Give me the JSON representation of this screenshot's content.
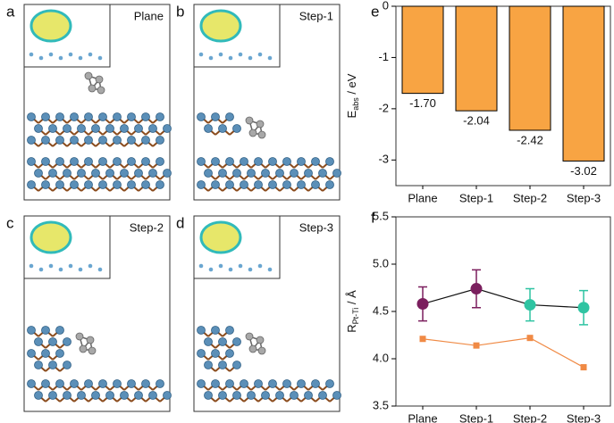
{
  "panels": [
    {
      "letter": "a",
      "label": "Plane"
    },
    {
      "letter": "b",
      "label": "Step-1"
    },
    {
      "letter": "c",
      "label": "Step-2"
    },
    {
      "letter": "d",
      "label": "Step-3"
    }
  ],
  "chart_data": [
    {
      "type": "bar",
      "letter": "e",
      "ylabel": [
        "E",
        "abs",
        " / eV"
      ],
      "categories": [
        "Plane",
        "Step-1",
        "Step-2",
        "Step-3"
      ],
      "values": [
        -1.7,
        -2.04,
        -2.42,
        -3.02
      ],
      "value_labels": [
        "-1.70",
        "-2.04",
        "-2.42",
        "-3.02"
      ],
      "color": "#f8a443",
      "ylim": [
        -3.5,
        0
      ],
      "yticks": [
        0,
        -1,
        -2,
        -3
      ]
    },
    {
      "type": "line",
      "letter": "f",
      "ylabel": [
        "R",
        "Pt-Ti",
        " / Å"
      ],
      "categories": [
        "Plane",
        "Step-1",
        "Step-2",
        "Step-3"
      ],
      "series": [
        {
          "color": "#111111",
          "values": [
            4.58,
            4.74,
            4.57,
            4.54
          ],
          "errors": [
            0.18,
            0.2,
            0.17,
            0.18
          ],
          "colors": [
            "#7b1f5e",
            "#7b1f5e",
            "#2fc4a2",
            "#2fc4a2"
          ],
          "marker": "circle"
        },
        {
          "color": "#f08a45",
          "values": [
            4.21,
            4.14,
            4.22,
            3.91
          ],
          "marker": "square"
        }
      ],
      "ylim": [
        3.5,
        5.5
      ],
      "yticks": [
        3.5,
        {
          "value": 4,
          "label": "4.0"
        },
        4.5,
        {
          "value": 5,
          "label": "5.0"
        },
        5.5
      ]
    }
  ]
}
